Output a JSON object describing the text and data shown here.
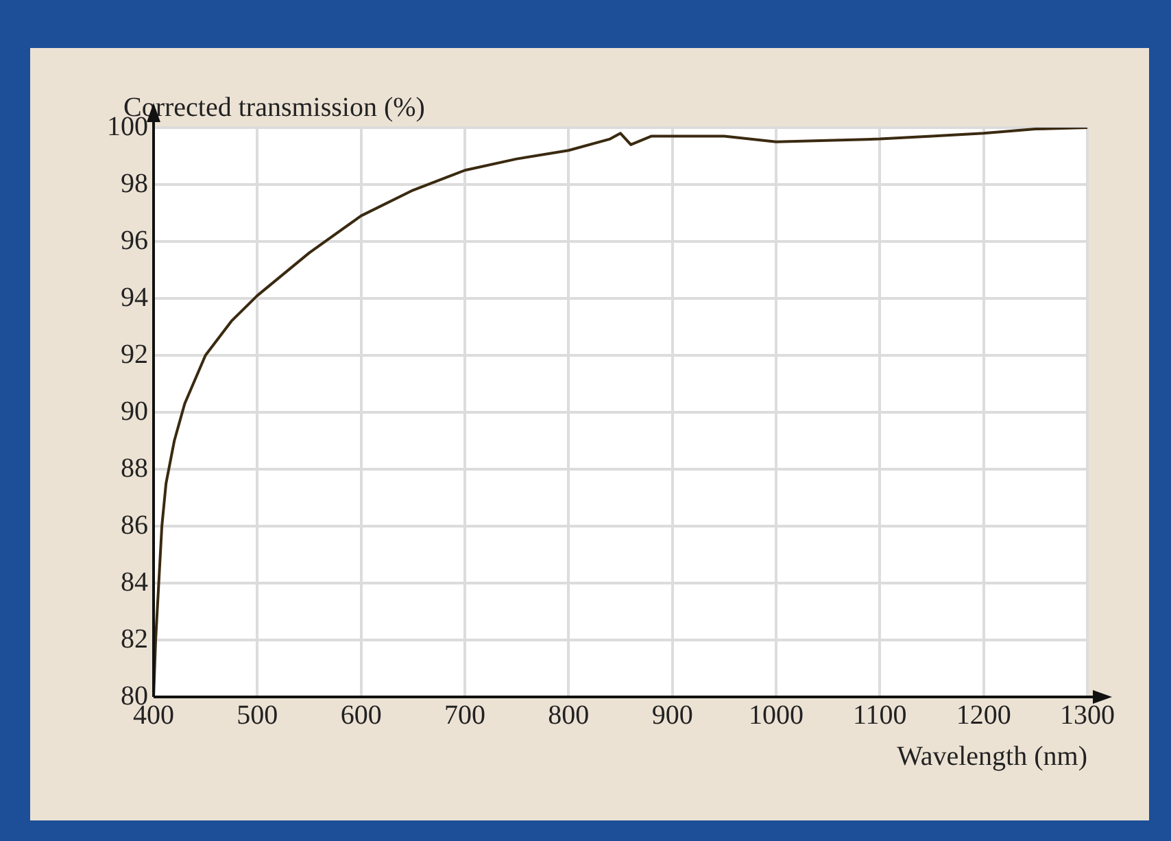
{
  "chart_data": {
    "type": "line",
    "xlabel": "Wavelength (nm)",
    "ylabel": "Corrected transmission (%)",
    "x": [
      400,
      402,
      405,
      408,
      412,
      420,
      430,
      450,
      475,
      500,
      550,
      600,
      650,
      700,
      750,
      800,
      840,
      850,
      860,
      880,
      950,
      1000,
      1100,
      1150,
      1200,
      1250,
      1300
    ],
    "values": [
      80,
      82,
      84,
      86,
      87.5,
      89,
      90.3,
      92,
      93.2,
      94.1,
      95.6,
      96.9,
      97.8,
      98.5,
      98.9,
      99.2,
      99.6,
      99.8,
      99.4,
      99.7,
      99.7,
      99.5,
      99.6,
      99.7,
      99.8,
      99.95,
      100
    ],
    "color": "#3a2a10",
    "xlim": [
      400,
      1300
    ],
    "xticks": [
      400,
      500,
      600,
      700,
      800,
      900,
      1000,
      1100,
      1200,
      1300
    ],
    "ylim": [
      80,
      100
    ],
    "yticks": [
      80,
      82,
      84,
      86,
      88,
      90,
      92,
      94,
      96,
      98,
      100
    ],
    "grid": true,
    "legend": false,
    "marker": "none",
    "line_style": "solid"
  }
}
